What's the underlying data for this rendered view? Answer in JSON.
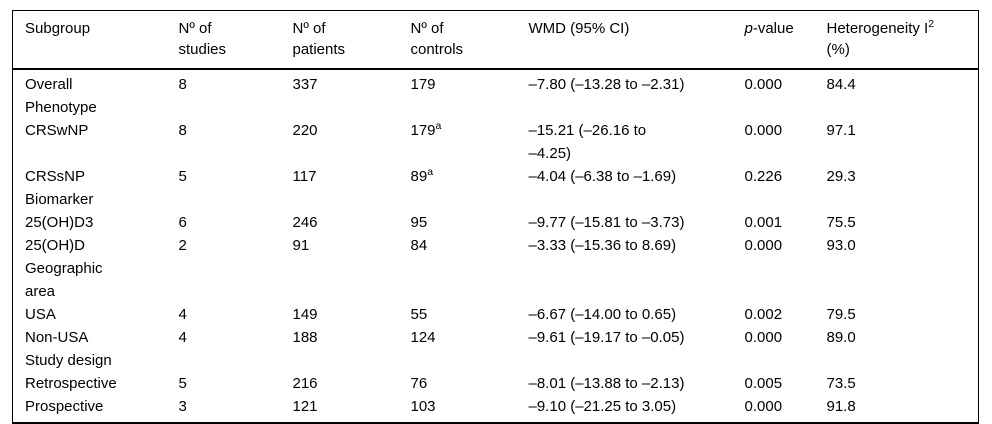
{
  "colors": {
    "background": "#ffffff",
    "text": "#000000",
    "rule": "#000000"
  },
  "table": {
    "columns": [
      {
        "italic": "",
        "line1": "Subgroup",
        "sup": "",
        "line2": ""
      },
      {
        "italic": "",
        "line1": "Nº of",
        "sup": "",
        "line2": "studies"
      },
      {
        "italic": "",
        "line1": "Nº of",
        "sup": "",
        "line2": "patients"
      },
      {
        "italic": "",
        "line1": "Nº of",
        "sup": "",
        "line2": "controls"
      },
      {
        "italic": "",
        "line1": "WMD (95% CI)",
        "sup": "",
        "line2": ""
      },
      {
        "italic": "p",
        "line1": "-value",
        "sup": "",
        "line2": ""
      },
      {
        "italic": "",
        "line1": "Heterogeneity I",
        "sup": "2",
        "line2": "(%)"
      }
    ],
    "rows": [
      {
        "type": "data",
        "subgroup": "Overall",
        "studies": "8",
        "patients": "337",
        "controls": "179",
        "controls_note": "",
        "wmd": "–7.80 (–13.28 to –2.31)",
        "p": "0.000",
        "i2": "84.4"
      },
      {
        "type": "section",
        "subgroup": "Phenotype",
        "studies": "",
        "patients": "",
        "controls": "",
        "controls_note": "",
        "wmd": "",
        "p": "",
        "i2": ""
      },
      {
        "type": "data",
        "subgroup": "CRSwNP",
        "studies": "8",
        "patients": "220",
        "controls": "179",
        "controls_note": "a",
        "wmd": "–15.21 (–26.16 to\n–4.25)",
        "p": "0.000",
        "i2": "97.1"
      },
      {
        "type": "data",
        "subgroup": "CRSsNP",
        "studies": "5",
        "patients": "117",
        "controls": "89",
        "controls_note": "a",
        "wmd": "–4.04 (–6.38 to –1.69)",
        "p": "0.226",
        "i2": "29.3"
      },
      {
        "type": "section",
        "subgroup": "Biomarker",
        "studies": "",
        "patients": "",
        "controls": "",
        "controls_note": "",
        "wmd": "",
        "p": "",
        "i2": ""
      },
      {
        "type": "data",
        "subgroup": "25(OH)D3",
        "studies": "6",
        "patients": "246",
        "controls": "95",
        "controls_note": "",
        "wmd": "–9.77 (–15.81 to –3.73)",
        "p": "0.001",
        "i2": "75.5"
      },
      {
        "type": "data",
        "subgroup": "25(OH)D",
        "studies": "2",
        "patients": "91",
        "controls": "84",
        "controls_note": "",
        "wmd": "–3.33 (–15.36 to 8.69)",
        "p": "0.000",
        "i2": "93.0"
      },
      {
        "type": "section",
        "subgroup": "Geographic\narea",
        "studies": "",
        "patients": "",
        "controls": "",
        "controls_note": "",
        "wmd": "",
        "p": "",
        "i2": ""
      },
      {
        "type": "data",
        "subgroup": "USA",
        "studies": "4",
        "patients": "149",
        "controls": "55",
        "controls_note": "",
        "wmd": "–6.67 (–14.00 to 0.65)",
        "p": "0.002",
        "i2": "79.5"
      },
      {
        "type": "data",
        "subgroup": "Non-USA",
        "studies": "4",
        "patients": "188",
        "controls": "124",
        "controls_note": "",
        "wmd": "–9.61 (–19.17 to –0.05)",
        "p": "0.000",
        "i2": "89.0"
      },
      {
        "type": "section",
        "subgroup": "Study design",
        "studies": "",
        "patients": "",
        "controls": "",
        "controls_note": "",
        "wmd": "",
        "p": "",
        "i2": ""
      },
      {
        "type": "data",
        "subgroup": "Retrospective",
        "studies": "5",
        "patients": "216",
        "controls": "76",
        "controls_note": "",
        "wmd": "–8.01 (–13.88 to –2.13)",
        "p": "0.005",
        "i2": "73.5"
      },
      {
        "type": "data",
        "subgroup": "Prospective",
        "studies": "3",
        "patients": "121",
        "controls": "103",
        "controls_note": "",
        "wmd": "–9.10 (–21.25 to 3.05)",
        "p": "0.000",
        "i2": "91.8"
      }
    ]
  }
}
